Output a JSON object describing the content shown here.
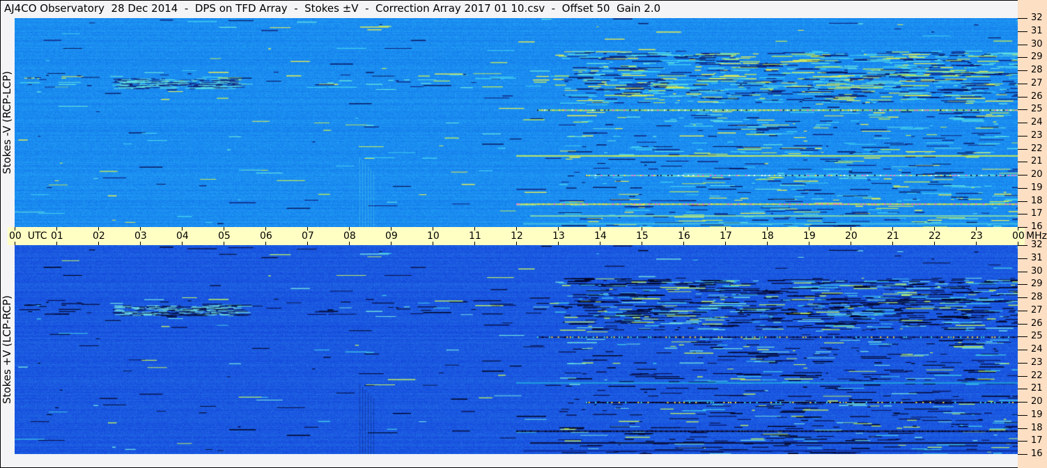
{
  "title": "AJ4CO Observatory  28 Dec 2014  -  DPS on TFD Array  -  Stokes ±V  -  Correction Array 2017 01 10.csv  -  Offset 50  Gain 2.0",
  "time_axis": {
    "start_label": "00  UTC",
    "end_label": "00",
    "unit_label": "MHz",
    "hour_labels": [
      "01",
      "02",
      "03",
      "04",
      "05",
      "06",
      "07",
      "08",
      "09",
      "10",
      "11",
      "12",
      "13",
      "14",
      "15",
      "16",
      "17",
      "18",
      "19",
      "20",
      "21",
      "22",
      "23"
    ]
  },
  "colors": {
    "top_base": "#1a8cf0",
    "bottom_base": "#1a58e0",
    "time_bar": "#ffffc4",
    "freq_axis": "#fddfc3"
  },
  "chart_data": [
    {
      "type": "heatmap",
      "title": "Stokes -V (RCP-LCP)",
      "x": {
        "label": "UTC",
        "range": [
          "00",
          "00"
        ],
        "ticks": [
          "00",
          "01",
          "02",
          "03",
          "04",
          "05",
          "06",
          "07",
          "08",
          "09",
          "10",
          "11",
          "12",
          "13",
          "14",
          "15",
          "16",
          "17",
          "18",
          "19",
          "20",
          "21",
          "22",
          "23",
          "00"
        ]
      },
      "y": {
        "label": "MHz",
        "range": [
          16,
          32
        ],
        "ticks": [
          32,
          31,
          30,
          29,
          28,
          27,
          26,
          25,
          24,
          23,
          22,
          21,
          20,
          19,
          18,
          17,
          16
        ]
      },
      "colormap": "blue-cyan-yellow-magenta"
    },
    {
      "type": "heatmap",
      "title": "Stokes +V (LCP-RCP)",
      "x": {
        "label": "UTC",
        "range": [
          "00",
          "00"
        ],
        "ticks": [
          "00",
          "01",
          "02",
          "03",
          "04",
          "05",
          "06",
          "07",
          "08",
          "09",
          "10",
          "11",
          "12",
          "13",
          "14",
          "15",
          "16",
          "17",
          "18",
          "19",
          "20",
          "21",
          "22",
          "23",
          "00"
        ]
      },
      "y": {
        "label": "MHz",
        "range": [
          16,
          32
        ],
        "ticks": [
          32,
          31,
          30,
          29,
          28,
          27,
          26,
          25,
          24,
          23,
          22,
          21,
          20,
          19,
          18,
          17,
          16
        ]
      },
      "colormap": "blue-cyan-yellow-magenta"
    }
  ]
}
